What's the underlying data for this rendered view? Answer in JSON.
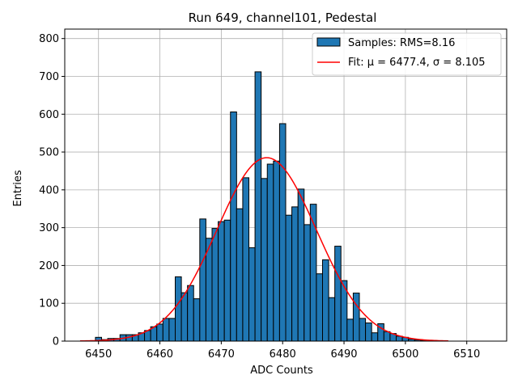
{
  "chart_data": {
    "type": "bar",
    "title": "Run 649, channel101, Pedestal",
    "xlabel": "ADC Counts",
    "ylabel": "Entries",
    "xlim": [
      6444.5,
      6516.5
    ],
    "ylim": [
      0,
      825
    ],
    "xticks": [
      6450,
      6460,
      6470,
      6480,
      6490,
      6500,
      6510
    ],
    "yticks": [
      0,
      100,
      200,
      300,
      400,
      500,
      600,
      700,
      800
    ],
    "grid": true,
    "legend_position": "top-right",
    "colors": {
      "bars": "#1f77b4",
      "bar_edge": "#000000",
      "fit": "#ff0000",
      "grid": "#b0b0b0"
    },
    "histogram": {
      "name": "Samples: RMS=8.16",
      "bin_width": 1,
      "bins_x": [
        6450,
        6451,
        6452,
        6453,
        6454,
        6455,
        6456,
        6457,
        6458,
        6459,
        6460,
        6461,
        6462,
        6463,
        6464,
        6465,
        6466,
        6467,
        6468,
        6469,
        6470,
        6471,
        6472,
        6473,
        6474,
        6475,
        6476,
        6477,
        6478,
        6479,
        6480,
        6481,
        6482,
        6483,
        6484,
        6485,
        6486,
        6487,
        6488,
        6489,
        6490,
        6491,
        6492,
        6493,
        6494,
        6495,
        6496,
        6497,
        6498,
        6499,
        6500,
        6501,
        6502,
        6503,
        6504,
        6505,
        6506
      ],
      "counts": [
        10,
        4,
        7,
        7,
        17,
        17,
        17,
        22,
        28,
        38,
        45,
        60,
        60,
        170,
        128,
        147,
        112,
        323,
        272,
        298,
        316,
        320,
        606,
        350,
        432,
        247,
        712,
        430,
        468,
        476,
        575,
        333,
        355,
        402,
        308,
        362,
        178,
        215,
        115,
        251,
        160,
        58,
        127,
        60,
        48,
        22,
        46,
        25,
        20,
        13,
        10,
        5,
        3,
        2,
        2,
        1,
        1
      ]
    },
    "fit": {
      "name": "Fit: μ = 6477.4, σ = 8.105",
      "mu": 6477.4,
      "sigma": 8.105,
      "amplitude": 485,
      "x_range": [
        6447,
        6507
      ]
    }
  }
}
